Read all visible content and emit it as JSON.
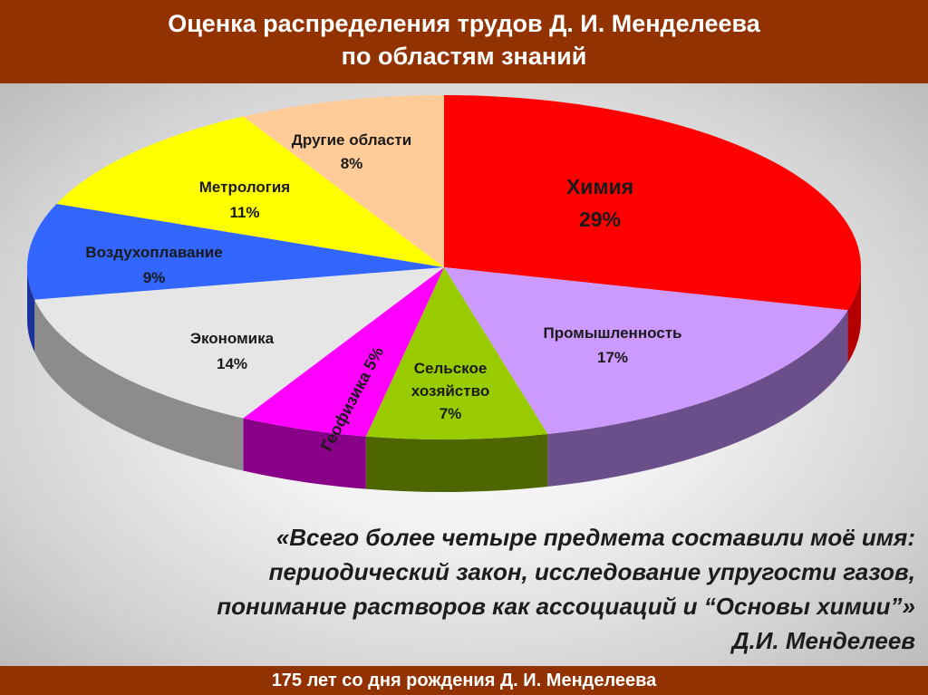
{
  "header": {
    "title_line1": "Оценка распределения трудов Д. И. Менделеева",
    "title_line2": "по областям знаний"
  },
  "chart_data": {
    "type": "pie",
    "title": "Оценка распределения трудов Д. И. Менделеева по областям знаний",
    "slices": [
      {
        "label": "Химия",
        "display": [
          "Химия"
        ],
        "value": 29,
        "value_text": "29%",
        "color": "#fe0000",
        "side_color": "#b40000"
      },
      {
        "label": "Промышленность",
        "display": [
          "Промышленность"
        ],
        "value": 17,
        "value_text": "17%",
        "color": "#cc99ff",
        "side_color": "#6b4f8a"
      },
      {
        "label": "Сельское хозяйство",
        "display": [
          "Сельское",
          "хозяйство"
        ],
        "value": 7,
        "value_text": "7%",
        "color": "#99cc00",
        "side_color": "#4d6600"
      },
      {
        "label": "Геофизика",
        "display": [
          "Геофизика 5%"
        ],
        "value": 5,
        "value_text": "",
        "color": "#ff00ff",
        "side_color": "#880088"
      },
      {
        "label": "Экономика",
        "display": [
          "Экономика"
        ],
        "value": 14,
        "value_text": "14%",
        "color": "#e6e6e6",
        "side_color": "#8c8c8c"
      },
      {
        "label": "Воздухоплавание",
        "display": [
          "Воздухоплавание"
        ],
        "value": 9,
        "value_text": "9%",
        "color": "#3366ff",
        "side_color": "#1a3399"
      },
      {
        "label": "Метрология",
        "display": [
          "Метрология"
        ],
        "value": 11,
        "value_text": "11%",
        "color": "#ffff00",
        "side_color": "#999900"
      },
      {
        "label": "Другие области",
        "display": [
          "Другие области"
        ],
        "value": 8,
        "value_text": "8%",
        "color": "#ffcc99",
        "side_color": "#aa8866"
      }
    ]
  },
  "quote": {
    "line1": "«Всего более четыре предмета составили моё имя:",
    "line2": "периодический закон, исследование упругости газов,",
    "line3": "понимание растворов как ассоциаций и “Основы химии”»",
    "author": "Д.И. Менделеев"
  },
  "footer": {
    "text": "175 лет со дня рождения Д. И. Менделеева"
  }
}
